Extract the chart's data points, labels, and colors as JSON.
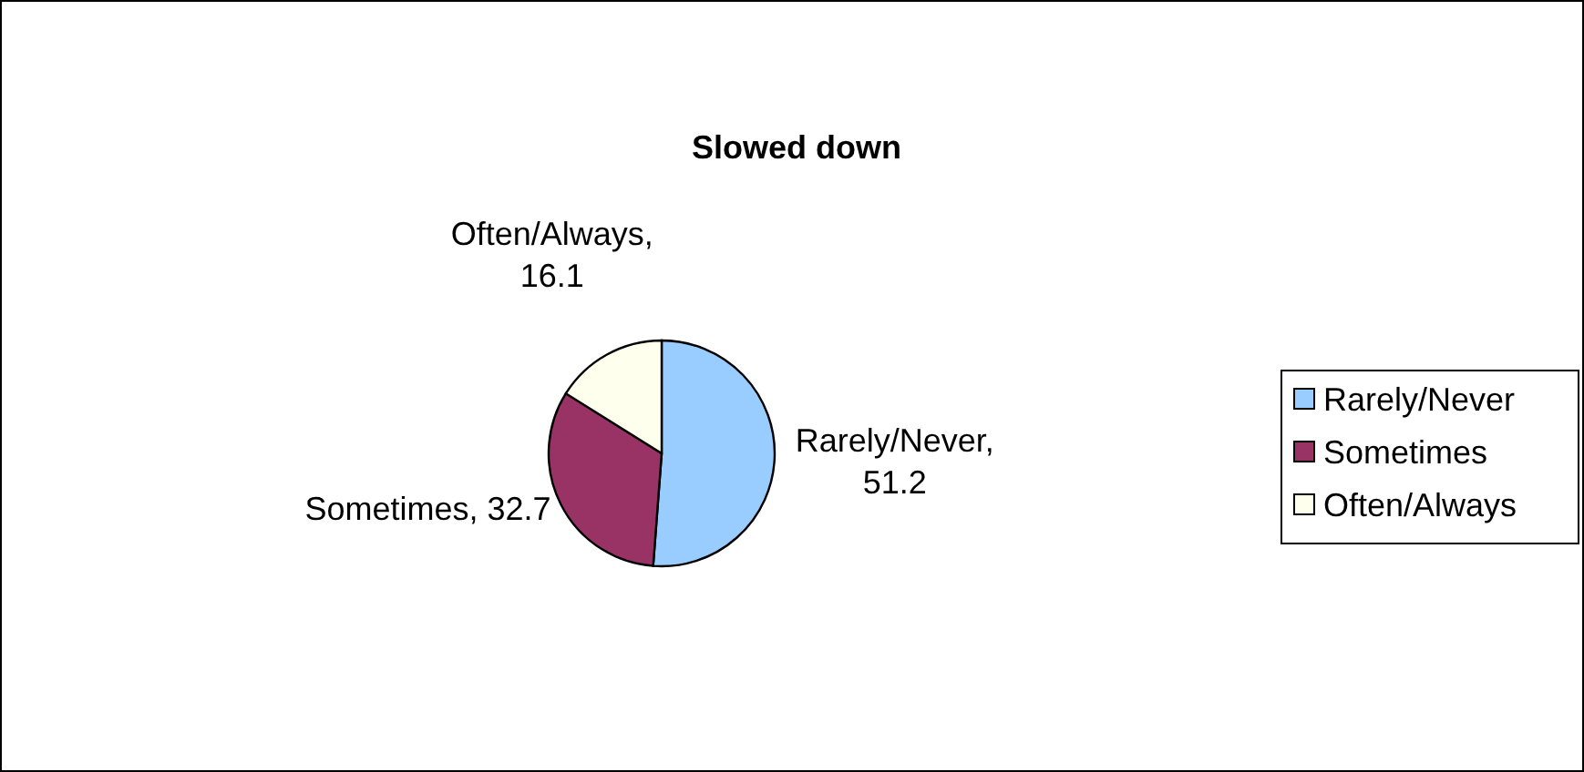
{
  "chart_data": {
    "type": "pie",
    "title": "Slowed down",
    "categories": [
      "Rarely/Never",
      "Sometimes",
      "Often/Always"
    ],
    "values": [
      51.2,
      32.7,
      16.1
    ],
    "value_labels": [
      "Rarely/Never, 51.2",
      "Sometimes, 32.7",
      "Often/Always, 16.1"
    ],
    "colors": [
      "#99ccff",
      "#993366",
      "#ffffee"
    ],
    "legend": "right"
  }
}
